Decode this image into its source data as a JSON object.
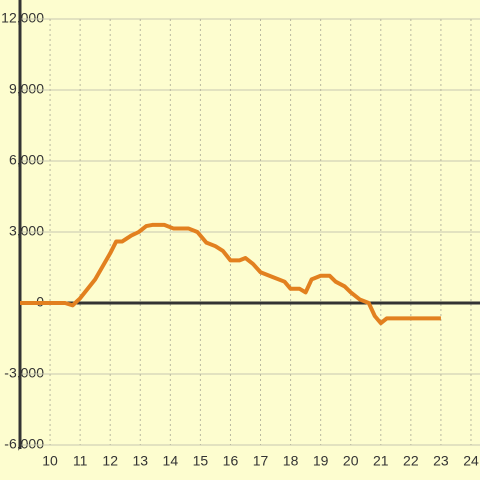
{
  "chart_data": {
    "type": "line",
    "x": [
      9.0,
      10.5,
      10.75,
      11.0,
      11.5,
      12.0,
      12.2,
      12.4,
      12.7,
      12.95,
      13.2,
      13.4,
      13.8,
      14.1,
      14.6,
      14.9,
      15.2,
      15.5,
      15.75,
      16.0,
      16.3,
      16.5,
      16.75,
      17.0,
      17.4,
      17.8,
      18.0,
      18.3,
      18.5,
      18.7,
      19.0,
      19.3,
      19.5,
      19.8,
      20.0,
      20.3,
      20.6,
      20.8,
      21.0,
      21.2,
      21.5,
      23.0
    ],
    "series": [
      {
        "color": "#e2801f",
        "values": [
          0,
          0,
          -100,
          200,
          1000,
          2100,
          2600,
          2600,
          2850,
          3000,
          3250,
          3300,
          3300,
          3150,
          3150,
          3000,
          2550,
          2400,
          2200,
          1800,
          1800,
          1900,
          1650,
          1300,
          1100,
          900,
          600,
          600,
          450,
          1000,
          1150,
          1150,
          900,
          700,
          450,
          150,
          0,
          -550,
          -850,
          -650,
          -650,
          -650
        ]
      }
    ],
    "xlim": [
      9,
      24.3
    ],
    "xticks": [
      10,
      11,
      12,
      13,
      14,
      15,
      16,
      17,
      18,
      19,
      20,
      21,
      22,
      23,
      24
    ],
    "ylim": [
      -6000,
      12000
    ],
    "yticks": [
      {
        "value": -6000,
        "label": "-6,000"
      },
      {
        "value": -3000,
        "label": "-3,000"
      },
      0,
      {
        "value": 3000,
        "label": "3,000"
      },
      {
        "value": 6000,
        "label": "6,000"
      },
      {
        "value": 9000,
        "label": "9,000"
      },
      {
        "value": 12000,
        "label": "12,000"
      }
    ],
    "grid": true
  }
}
